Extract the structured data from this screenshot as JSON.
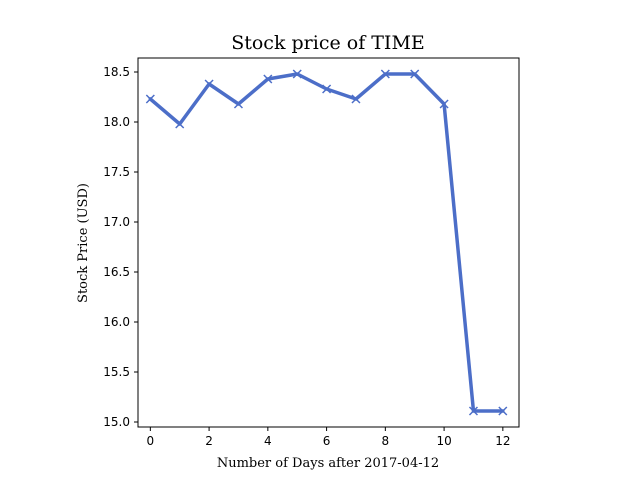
{
  "chart_data": {
    "type": "line",
    "title": "Stock price of TIME",
    "xlabel": "Number of Days after 2017-04-12",
    "ylabel": "Stock Price (USD)",
    "xlim": [
      -0.42,
      12.55
    ],
    "ylim": [
      14.95,
      18.64
    ],
    "x_ticks": [
      0,
      2,
      4,
      6,
      8,
      10,
      12
    ],
    "x_tick_labels": [
      "0",
      "2",
      "4",
      "6",
      "8",
      "10",
      "12"
    ],
    "y_ticks": [
      15.0,
      15.5,
      16.0,
      16.5,
      17.0,
      17.5,
      18.0,
      18.5
    ],
    "y_tick_labels": [
      "15.0",
      "15.5",
      "16.0",
      "16.5",
      "17.0",
      "17.5",
      "18.0",
      "18.5"
    ],
    "grid": false,
    "series": [
      {
        "color": "#4c6ec8",
        "marker": "x",
        "x": [
          0,
          1,
          2,
          3,
          4,
          5,
          6,
          7,
          8,
          9,
          10,
          11,
          12
        ],
        "y": [
          18.23,
          17.98,
          18.38,
          18.18,
          18.43,
          18.48,
          18.33,
          18.23,
          18.48,
          18.48,
          18.18,
          15.11,
          15.11
        ]
      }
    ]
  }
}
